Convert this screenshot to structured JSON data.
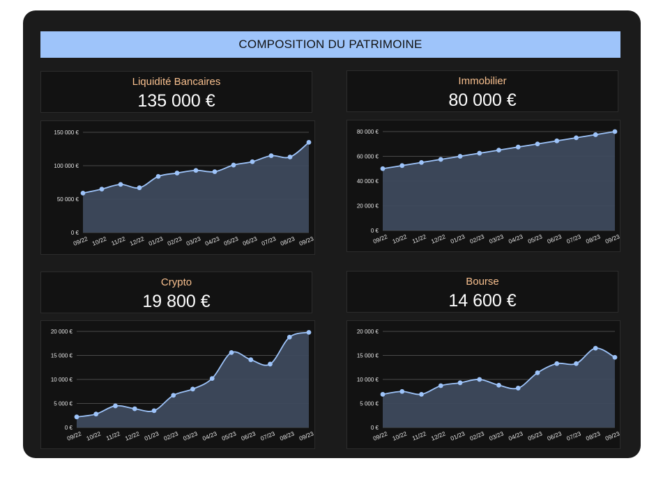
{
  "header": {
    "title": "COMPOSITION DU PATRIMOINE"
  },
  "colors": {
    "line": "#9ec4fa",
    "area": "#3e4a5d",
    "grid": "#4a4a4a",
    "label": "#f7bf8e"
  },
  "kpis": [
    {
      "label": "Liquidité Bancaires",
      "value": "135 000 €"
    },
    {
      "label": "Immobilier",
      "value": "80 000 €"
    },
    {
      "label": "Crypto",
      "value": "19 800 €"
    },
    {
      "label": "Bourse",
      "value": "14 600 €"
    }
  ],
  "chart_data": [
    {
      "type": "area",
      "x": [
        "09/22",
        "10/22",
        "11/22",
        "12/22",
        "01/23",
        "02/23",
        "03/23",
        "04/23",
        "05/23",
        "06/23",
        "07/23",
        "08/23",
        "09/23"
      ],
      "values": [
        59000,
        65000,
        72000,
        67000,
        84000,
        89000,
        93000,
        91000,
        101000,
        106000,
        115000,
        113000,
        135000
      ],
      "ylim": [
        0,
        150000
      ],
      "yticks": [
        0,
        50000,
        100000,
        150000
      ],
      "ytick_labels": [
        "0 €",
        "50 000 €",
        "100 000 €",
        "150 000 €"
      ]
    },
    {
      "type": "area",
      "x": [
        "09/22",
        "10/22",
        "11/22",
        "12/22",
        "01/23",
        "02/23",
        "03/23",
        "04/23",
        "05/23",
        "06/23",
        "07/23",
        "08/23",
        "09/23"
      ],
      "values": [
        50000,
        52500,
        55000,
        57500,
        60000,
        62500,
        65000,
        67500,
        70000,
        72500,
        75000,
        77500,
        80000
      ],
      "ylim": [
        0,
        80000
      ],
      "yticks": [
        0,
        20000,
        40000,
        60000,
        80000
      ],
      "ytick_labels": [
        "0 €",
        "20 000 €",
        "40 000 €",
        "60 000 €",
        "80 000 €"
      ]
    },
    {
      "type": "area",
      "x": [
        "09/22",
        "10/22",
        "11/22",
        "12/22",
        "01/23",
        "02/23",
        "03/23",
        "04/23",
        "05/23",
        "06/23",
        "07/23",
        "08/23",
        "09/23"
      ],
      "values": [
        2200,
        2800,
        4500,
        3900,
        3500,
        6700,
        8000,
        10200,
        15600,
        14100,
        13200,
        18800,
        19800
      ],
      "ylim": [
        0,
        20000
      ],
      "yticks": [
        0,
        5000,
        10000,
        15000,
        20000
      ],
      "ytick_labels": [
        "0 €",
        "5 000 €",
        "10 000 €",
        "15 000 €",
        "20 000 €"
      ]
    },
    {
      "type": "area",
      "x": [
        "09/22",
        "10/22",
        "11/22",
        "12/22",
        "01/23",
        "02/23",
        "03/23",
        "04/23",
        "05/23",
        "06/23",
        "07/23",
        "08/23",
        "09/23"
      ],
      "values": [
        6900,
        7500,
        6900,
        8700,
        9300,
        10000,
        8800,
        8200,
        11400,
        13300,
        13300,
        16500,
        14600
      ],
      "ylim": [
        0,
        20000
      ],
      "yticks": [
        0,
        5000,
        10000,
        15000,
        20000
      ],
      "ytick_labels": [
        "0 €",
        "5 000 €",
        "10 000 €",
        "15 000 €",
        "20 000 €"
      ]
    }
  ]
}
